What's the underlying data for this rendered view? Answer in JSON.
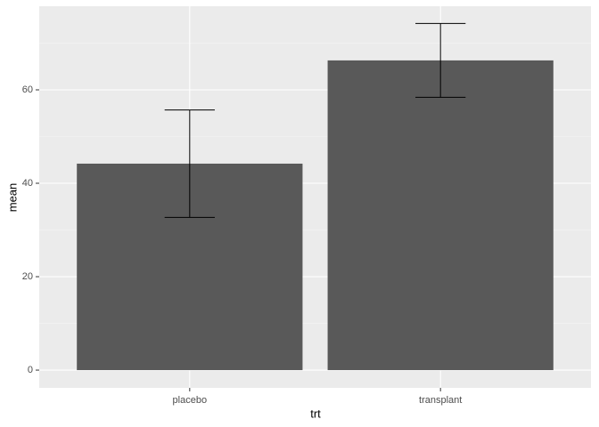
{
  "chart_data": {
    "type": "bar",
    "categories": [
      "placebo",
      "transplant"
    ],
    "values": [
      44.2,
      66.3
    ],
    "errors": [
      11.5,
      7.9
    ],
    "color": "#595959",
    "x_label": "trt",
    "y_label": "mean",
    "ylim": [
      -3.8,
      77.9
    ],
    "yticks": [
      0,
      20,
      40,
      60
    ],
    "minor_yticks": [
      10,
      30,
      50,
      70
    ],
    "grid": true
  }
}
